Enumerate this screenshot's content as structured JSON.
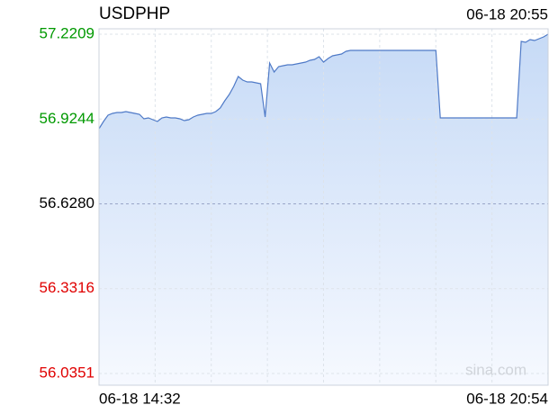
{
  "chart_data": {
    "type": "line",
    "title": "USDPHP",
    "timestamp": "06-18 20:55",
    "watermark": "sina.com",
    "x_labels": [
      "06-18 14:32",
      "06-18 20:54"
    ],
    "series": [
      {
        "name": "USDPHP",
        "color": "#4f7ac7",
        "values": [
          56.8906,
          56.9158,
          56.9378,
          56.9441,
          56.9472,
          56.9472,
          56.9504,
          56.9472,
          56.9441,
          56.9409,
          56.9252,
          56.9284,
          56.9221,
          56.9158,
          56.9284,
          56.9315,
          56.9284,
          56.9284,
          56.9252,
          56.9189,
          56.9221,
          56.9315,
          56.9378,
          56.9409,
          56.9441,
          56.9441,
          56.9504,
          56.963,
          56.9881,
          57.0101,
          57.0385,
          57.0731,
          57.0605,
          57.0542,
          57.0542,
          57.051,
          57.0479,
          56.9315,
          57.1202,
          57.0888,
          57.1077,
          57.1108,
          57.1139,
          57.1139,
          57.1171,
          57.1202,
          57.1234,
          57.1297,
          57.1328,
          57.1423,
          57.1234,
          57.136,
          57.1454,
          57.1486,
          57.1517,
          57.1611,
          57.1643,
          57.1643,
          57.1643,
          57.1643,
          57.1643,
          57.1643,
          57.1643,
          57.1643,
          57.1643,
          57.1643,
          57.1643,
          57.1643,
          57.1643,
          57.1643,
          57.1643,
          57.1643,
          57.1643,
          57.1643,
          57.1643,
          57.1643,
          56.9284,
          56.9284,
          56.9284,
          56.9284,
          56.9284,
          56.9284,
          56.9284,
          56.9284,
          56.9284,
          56.9284,
          56.9284,
          56.9284,
          56.9284,
          56.9284,
          56.9284,
          56.9284,
          56.9284,
          56.9284,
          57.1957,
          57.1926,
          57.202,
          57.1989,
          57.2052,
          57.2115,
          57.2209
        ]
      }
    ],
    "ylim": [
      56.0351,
      57.2209
    ],
    "yticks": [
      {
        "value": 57.2209,
        "label": "57.2209"
      },
      {
        "value": 56.9244,
        "label": "56.9244"
      },
      {
        "value": 56.628,
        "label": "56.6280"
      },
      {
        "value": 56.3316,
        "label": "56.3316"
      },
      {
        "value": 56.0351,
        "label": "56.0351"
      }
    ],
    "up_color": "#009900",
    "down_color": "#e00000",
    "grid": true
  }
}
